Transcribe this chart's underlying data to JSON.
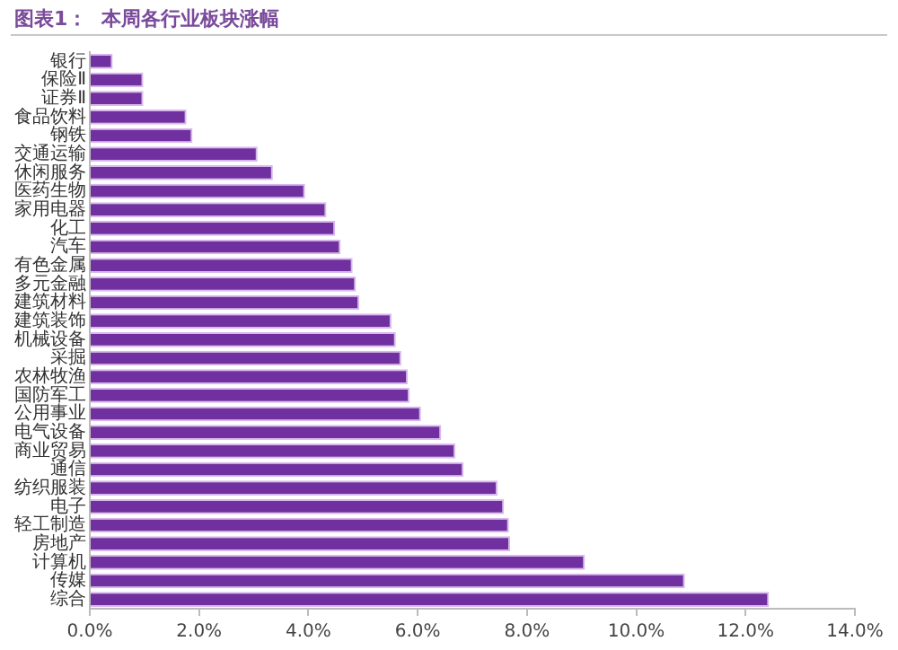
{
  "chart_data": {
    "type": "bar",
    "orientation": "horizontal",
    "title": "图表1：  本周各行业板块涨幅",
    "categories": [
      "银行",
      "保险Ⅱ",
      "证券Ⅱ",
      "食品饮料",
      "钢铁",
      "交通运输",
      "休闲服务",
      "医药生物",
      "家用电器",
      "化工",
      "汽车",
      "有色金属",
      "多元金融",
      "建筑材料",
      "建筑装饰",
      "机械设备",
      "采掘",
      "农林牧渔",
      "国防军工",
      "公用事业",
      "电气设备",
      "商业贸易",
      "通信",
      "纺织服装",
      "电子",
      "轻工制造",
      "房地产",
      "计算机",
      "传媒",
      "综合"
    ],
    "values": [
      0.42,
      0.98,
      0.98,
      1.77,
      1.88,
      3.07,
      3.35,
      3.94,
      4.33,
      4.49,
      4.59,
      4.81,
      4.87,
      4.93,
      5.52,
      5.6,
      5.7,
      5.82,
      5.85,
      6.06,
      6.43,
      6.69,
      6.84,
      7.46,
      7.58,
      7.67,
      7.69,
      9.06,
      10.89,
      12.43
    ],
    "color": "#7030a0",
    "xlim": [
      0,
      14
    ],
    "xticks": [
      {
        "value": 0,
        "label": "0.0%"
      },
      {
        "value": 2,
        "label": "2.0%"
      },
      {
        "value": 4,
        "label": "4.0%"
      },
      {
        "value": 6,
        "label": "6.0%"
      },
      {
        "value": 8,
        "label": "8.0%"
      },
      {
        "value": 10,
        "label": "10.0%"
      },
      {
        "value": 12,
        "label": "12.0%"
      },
      {
        "value": 14,
        "label": "14.0%"
      }
    ],
    "grid": false,
    "legend": false
  }
}
